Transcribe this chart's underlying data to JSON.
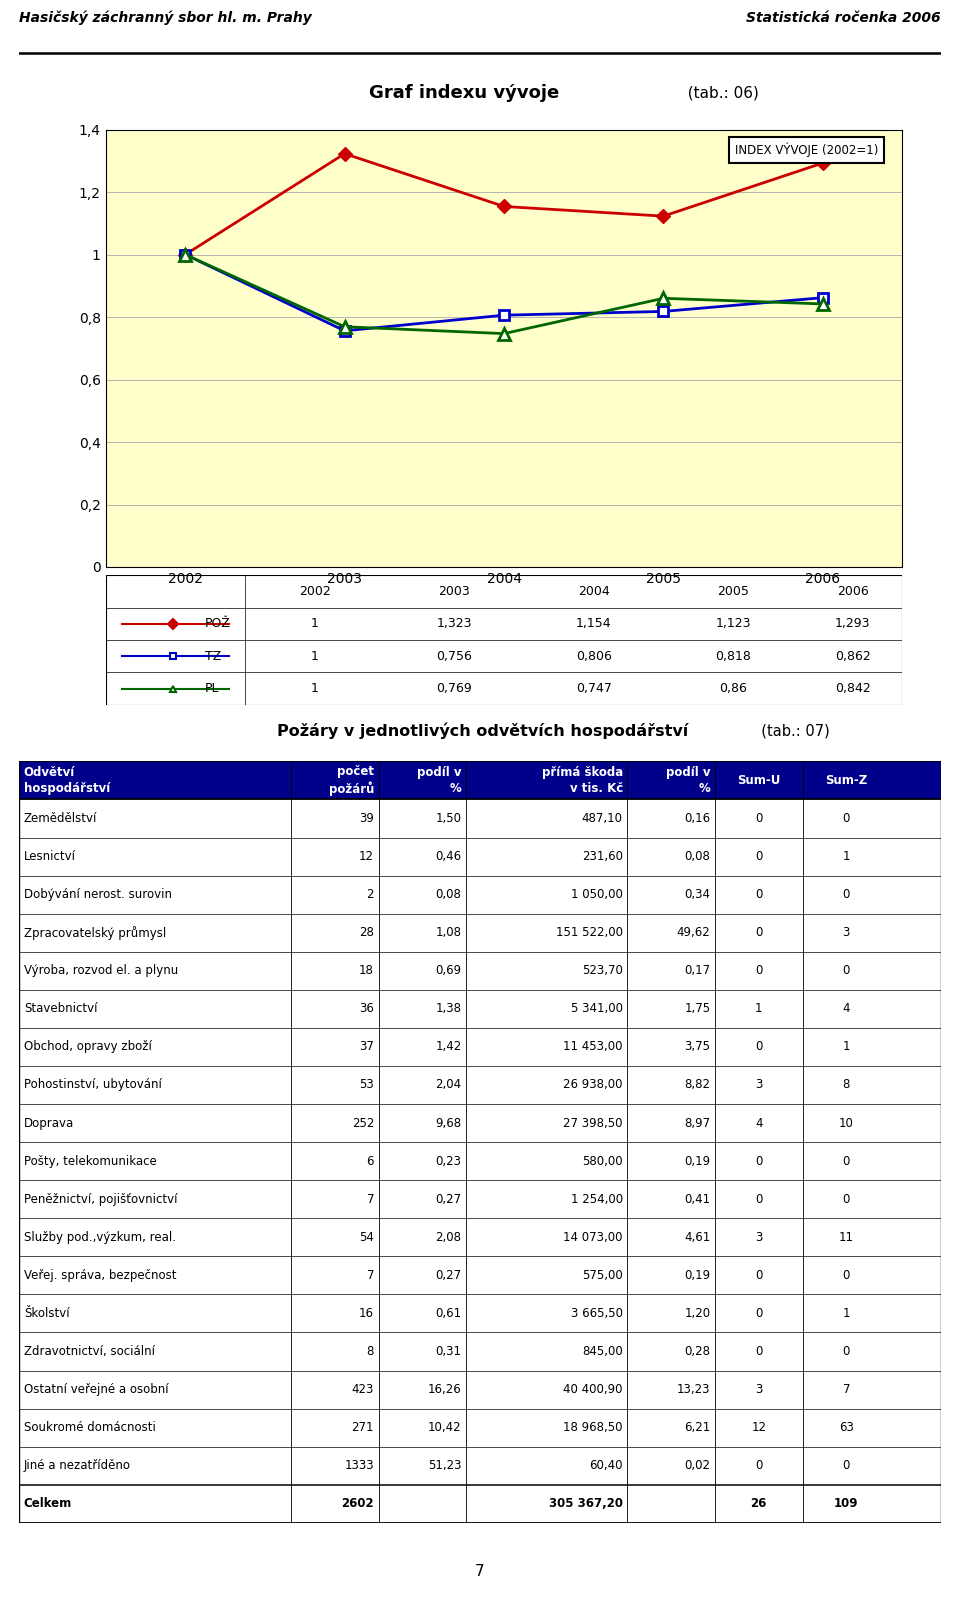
{
  "header_left": "Hasičský záchranný sbor hl. m. Prahy",
  "header_right": "Statistická ročenka 2006",
  "chart_title": "Graf indexu vývoje",
  "chart_title_tab": "(tab.: 06)",
  "legend_label": "INDEX VÝVOJE (2002=1)",
  "years": [
    2002,
    2003,
    2004,
    2005,
    2006
  ],
  "poz_values": [
    1,
    1.323,
    1.154,
    1.123,
    1.293
  ],
  "tz_values": [
    1,
    0.756,
    0.806,
    0.818,
    0.862
  ],
  "pl_values": [
    1,
    0.769,
    0.747,
    0.86,
    0.842
  ],
  "poz_color": "#cc0000",
  "tz_color": "#0000cc",
  "pl_color": "#006600",
  "ylim": [
    0,
    1.4
  ],
  "yticks": [
    0,
    0.2,
    0.4,
    0.6,
    0.8,
    1.0,
    1.2,
    1.4
  ],
  "ytick_labels": [
    "0",
    "0,2",
    "0,4",
    "0,6",
    "0,8",
    "1",
    "1,2",
    "1,4"
  ],
  "chart_bg": "#ffffcc",
  "table_title": "Požáry v jednotlivých odvětvích hospodářství",
  "table_title_tab": "(tab.: 07)",
  "rows": [
    [
      "Zemědělství",
      "39",
      "1,50",
      "487,10",
      "0,16",
      "0",
      "0"
    ],
    [
      "Lesnictví",
      "12",
      "0,46",
      "231,60",
      "0,08",
      "0",
      "1"
    ],
    [
      "Dobývání nerost. surovin",
      "2",
      "0,08",
      "1 050,00",
      "0,34",
      "0",
      "0"
    ],
    [
      "Zpracovatelský průmysl",
      "28",
      "1,08",
      "151 522,00",
      "49,62",
      "0",
      "3"
    ],
    [
      "Výroba, rozvod el. a plynu",
      "18",
      "0,69",
      "523,70",
      "0,17",
      "0",
      "0"
    ],
    [
      "Stavebnictví",
      "36",
      "1,38",
      "5 341,00",
      "1,75",
      "1",
      "4"
    ],
    [
      "Obchod, opravy zboží",
      "37",
      "1,42",
      "11 453,00",
      "3,75",
      "0",
      "1"
    ],
    [
      "Pohostinství, ubytování",
      "53",
      "2,04",
      "26 938,00",
      "8,82",
      "3",
      "8"
    ],
    [
      "Doprava",
      "252",
      "9,68",
      "27 398,50",
      "8,97",
      "4",
      "10"
    ],
    [
      "Pošty, telekomunikace",
      "6",
      "0,23",
      "580,00",
      "0,19",
      "0",
      "0"
    ],
    [
      "Peněžnictví, pojišťovnictví",
      "7",
      "0,27",
      "1 254,00",
      "0,41",
      "0",
      "0"
    ],
    [
      "Služby pod.,výzkum, real.",
      "54",
      "2,08",
      "14 073,00",
      "4,61",
      "3",
      "11"
    ],
    [
      "Veřej. správa, bezpečnost",
      "7",
      "0,27",
      "575,00",
      "0,19",
      "0",
      "0"
    ],
    [
      "Školství",
      "16",
      "0,61",
      "3 665,50",
      "1,20",
      "0",
      "1"
    ],
    [
      "Zdravotnictví, sociální",
      "8",
      "0,31",
      "845,00",
      "0,28",
      "0",
      "0"
    ],
    [
      "Ostatní veřejné a osobní",
      "423",
      "16,26",
      "40 400,90",
      "13,23",
      "3",
      "7"
    ],
    [
      "Soukromé domácnosti",
      "271",
      "10,42",
      "18 968,50",
      "6,21",
      "12",
      "63"
    ],
    [
      "Jiné a nezatříděno",
      "1333",
      "51,23",
      "60,40",
      "0,02",
      "0",
      "0"
    ]
  ],
  "footer_row": [
    "Celkem",
    "2602",
    "",
    "305 367,20",
    "",
    "26",
    "109"
  ],
  "header_bg": "#00008B",
  "page_number": "7"
}
